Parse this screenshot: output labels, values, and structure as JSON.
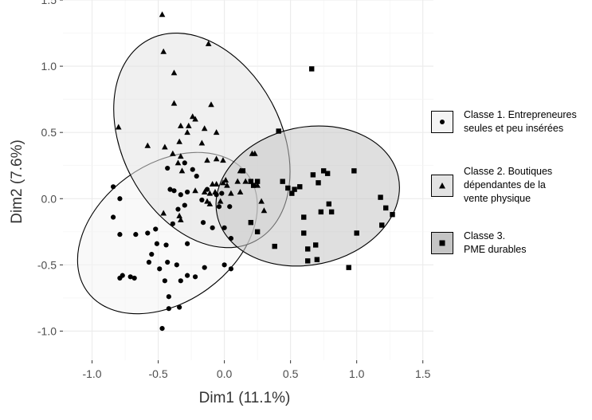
{
  "chart_data": {
    "type": "scatter",
    "title": "",
    "xlabel": "Dim1 (11.1%)",
    "ylabel": "Dim2 (7.6%)",
    "xlim": [
      -1.22,
      1.58
    ],
    "ylim": [
      -1.22,
      1.5
    ],
    "x_ticks": [
      -1.0,
      -0.5,
      0.0,
      0.5,
      1.0,
      1.5
    ],
    "x_tick_labels": [
      "-1.0",
      "-0.5",
      "0.0",
      "0.5",
      "1.0",
      "1.5"
    ],
    "y_ticks": [
      -1.0,
      -0.5,
      0.0,
      0.5,
      1.0,
      1.5
    ],
    "y_tick_labels": [
      "-1.0",
      "-0.5",
      "0.0",
      "0.5",
      "1.0",
      "1.5"
    ],
    "grid": true,
    "legend_position": "right",
    "series": [
      {
        "name": "Classe 1. Entrepreneures seules et peu insérées",
        "marker": "circle",
        "fill": "#f4f4f4",
        "ellipse": {
          "cx": -0.43,
          "cy": -0.26,
          "rx": 0.75,
          "ry": 0.52,
          "angle": -36
        },
        "points": [
          [
            -0.84,
            0.09
          ],
          [
            -0.79,
            0.0
          ],
          [
            -0.84,
            -0.14
          ],
          [
            -0.79,
            -0.27
          ],
          [
            -0.67,
            -0.27
          ],
          [
            -0.79,
            -0.6
          ],
          [
            -0.77,
            -0.58
          ],
          [
            -0.71,
            -0.59
          ],
          [
            -0.68,
            -0.6
          ],
          [
            -0.58,
            -0.26
          ],
          [
            -0.55,
            -0.42
          ],
          [
            -0.52,
            -0.23
          ],
          [
            -0.57,
            -0.48
          ],
          [
            -0.51,
            -0.34
          ],
          [
            -0.44,
            -0.35
          ],
          [
            -0.43,
            -0.48
          ],
          [
            -0.49,
            -0.53
          ],
          [
            -0.45,
            -0.62
          ],
          [
            -0.42,
            -0.74
          ],
          [
            -0.42,
            -0.83
          ],
          [
            -0.34,
            -0.82
          ],
          [
            -0.47,
            -0.98
          ],
          [
            -0.33,
            -0.62
          ],
          [
            -0.36,
            -0.5
          ],
          [
            -0.39,
            -0.19
          ],
          [
            -0.35,
            -0.08
          ],
          [
            -0.28,
            -0.34
          ],
          [
            -0.28,
            -0.58
          ],
          [
            -0.22,
            -0.59
          ],
          [
            -0.15,
            -0.52
          ],
          [
            -0.16,
            -0.18
          ],
          [
            -0.33,
            0.03
          ],
          [
            -0.28,
            0.05
          ],
          [
            -0.3,
            -0.05
          ],
          [
            -0.41,
            0.07
          ],
          [
            -0.38,
            0.06
          ],
          [
            -0.43,
            0.23
          ],
          [
            -0.3,
            0.27
          ],
          [
            -0.24,
            0.22
          ],
          [
            -0.21,
            0.17
          ],
          [
            -0.13,
            0.07
          ],
          [
            -0.17,
            -0.01
          ],
          [
            -0.06,
            0.03
          ],
          [
            -0.02,
            0.04
          ],
          [
            -0.04,
            -0.06
          ],
          [
            0.04,
            -0.06
          ],
          [
            -0.09,
            -0.22
          ],
          [
            0.0,
            -0.22
          ],
          [
            0.05,
            -0.3
          ],
          [
            0.0,
            -0.5
          ],
          [
            0.05,
            -0.53
          ]
        ]
      },
      {
        "name": "Classe 2. Boutiques dépendantes de la vente physique",
        "marker": "triangle",
        "fill": "#e3e3e3",
        "ellipse": {
          "cx": -0.17,
          "cy": 0.44,
          "rx": 0.6,
          "ry": 0.86,
          "angle": -28
        },
        "points": [
          [
            -0.47,
            1.39
          ],
          [
            -0.46,
            1.11
          ],
          [
            -0.38,
            0.95
          ],
          [
            -0.12,
            1.17
          ],
          [
            -0.38,
            0.72
          ],
          [
            -0.1,
            0.71
          ],
          [
            -0.24,
            0.62
          ],
          [
            -0.27,
            0.55
          ],
          [
            -0.22,
            0.6
          ],
          [
            -0.33,
            0.55
          ],
          [
            -0.28,
            0.5
          ],
          [
            -0.34,
            0.43
          ],
          [
            -0.8,
            0.54
          ],
          [
            -0.15,
            0.53
          ],
          [
            -0.06,
            0.5
          ],
          [
            -0.17,
            0.42
          ],
          [
            -0.58,
            0.4
          ],
          [
            -0.45,
            0.39
          ],
          [
            -0.39,
            0.34
          ],
          [
            -0.33,
            0.32
          ],
          [
            -0.35,
            0.27
          ],
          [
            -0.32,
            0.21
          ],
          [
            -0.13,
            0.29
          ],
          [
            -0.06,
            0.3
          ],
          [
            -0.01,
            0.29
          ],
          [
            0.21,
            0.34
          ],
          [
            0.23,
            0.34
          ],
          [
            0.12,
            0.21
          ],
          [
            0.01,
            0.14
          ],
          [
            0.1,
            0.13
          ],
          [
            0.16,
            0.13
          ],
          [
            -0.09,
            0.11
          ],
          [
            -0.06,
            0.11
          ],
          [
            -0.01,
            0.12
          ],
          [
            0.02,
            0.1
          ],
          [
            -0.22,
            0.06
          ],
          [
            -0.15,
            0.05
          ],
          [
            -0.11,
            0.04
          ],
          [
            -0.07,
            0.05
          ],
          [
            0.05,
            0.04
          ],
          [
            -0.13,
            -0.02
          ],
          [
            -0.11,
            -0.04
          ],
          [
            -0.03,
            -0.02
          ],
          [
            0.12,
            0.05
          ],
          [
            0.25,
            0.1
          ],
          [
            0.28,
            -0.02
          ],
          [
            0.3,
            -0.09
          ],
          [
            -0.46,
            -0.11
          ],
          [
            -0.34,
            -0.13
          ],
          [
            -0.33,
            -0.16
          ]
        ]
      },
      {
        "name": "Classe 3. PME durables",
        "marker": "square",
        "fill": "#c5c5c5",
        "ellipse": {
          "cx": 0.63,
          "cy": 0.02,
          "rx": 0.7,
          "ry": 0.52,
          "angle": -12
        },
        "points": [
          [
            0.66,
            0.98
          ],
          [
            0.41,
            0.51
          ],
          [
            0.14,
            0.21
          ],
          [
            0.2,
            0.13
          ],
          [
            0.25,
            0.13
          ],
          [
            0.22,
            0.1
          ],
          [
            0.2,
            -0.18
          ],
          [
            0.25,
            -0.25
          ],
          [
            0.38,
            -0.36
          ],
          [
            0.44,
            0.13
          ],
          [
            0.48,
            0.08
          ],
          [
            0.53,
            0.07
          ],
          [
            0.51,
            0.04
          ],
          [
            0.57,
            0.09
          ],
          [
            0.71,
            0.12
          ],
          [
            0.67,
            0.18
          ],
          [
            0.78,
            0.19
          ],
          [
            0.75,
            0.21
          ],
          [
            0.98,
            0.21
          ],
          [
            0.79,
            -0.04
          ],
          [
            0.81,
            -0.1
          ],
          [
            0.6,
            -0.14
          ],
          [
            0.73,
            -0.1
          ],
          [
            0.6,
            -0.26
          ],
          [
            0.63,
            -0.38
          ],
          [
            0.69,
            -0.35
          ],
          [
            0.7,
            -0.46
          ],
          [
            0.63,
            -0.47
          ],
          [
            0.94,
            -0.52
          ],
          [
            1.0,
            -0.26
          ],
          [
            1.19,
            -0.2
          ],
          [
            1.22,
            -0.07
          ],
          [
            1.27,
            -0.12
          ],
          [
            1.18,
            0.01
          ]
        ]
      }
    ],
    "legend": [
      {
        "marker": "circle",
        "fill": "#f4f4f4",
        "label": "Classe 1. Entrepreneures\nseules et peu insérées"
      },
      {
        "marker": "triangle",
        "fill": "#e3e3e3",
        "label": "Classe 2. Boutiques\ndépendantes de la\nvente physique"
      },
      {
        "marker": "square",
        "fill": "#c5c5c5",
        "label": "Classe 3.\nPME durables"
      }
    ]
  }
}
